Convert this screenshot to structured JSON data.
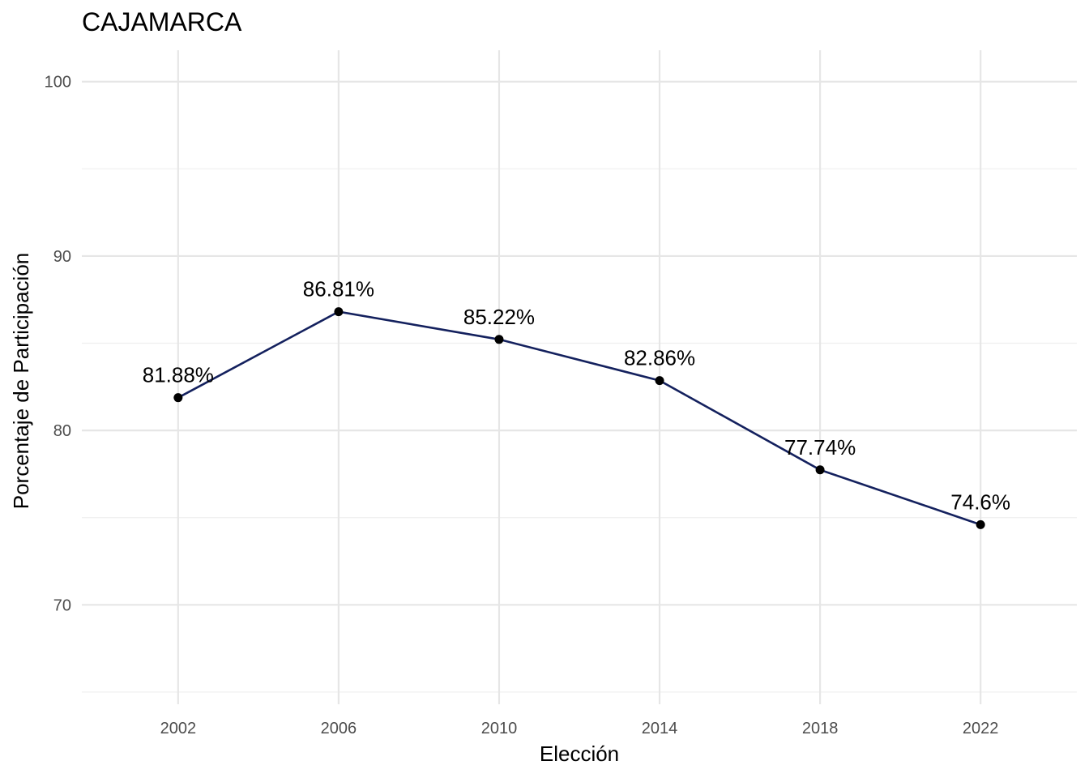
{
  "chart_data": {
    "type": "line",
    "title": "CAJAMARCA",
    "xlabel": "Elección",
    "ylabel": "Porcentaje de Participación",
    "x": [
      2002,
      2006,
      2010,
      2014,
      2018,
      2022
    ],
    "series": [
      {
        "values": [
          81.88,
          86.81,
          85.22,
          82.86,
          77.74,
          74.6
        ],
        "labels": [
          "81.88%",
          "86.81%",
          "85.22%",
          "82.86%",
          "77.74%",
          "74.6%"
        ]
      }
    ],
    "x_ticks": [
      "2002",
      "2006",
      "2010",
      "2014",
      "2018",
      "2022"
    ],
    "y_ticks": [
      "70",
      "80",
      "90",
      "100"
    ],
    "xlim": [
      1999.6,
      2024.4
    ],
    "ylim": [
      64.3,
      101.8
    ],
    "grid": true,
    "colors": {
      "line": "#14215e",
      "point": "#000000",
      "grid": "#e6e6e6"
    }
  }
}
